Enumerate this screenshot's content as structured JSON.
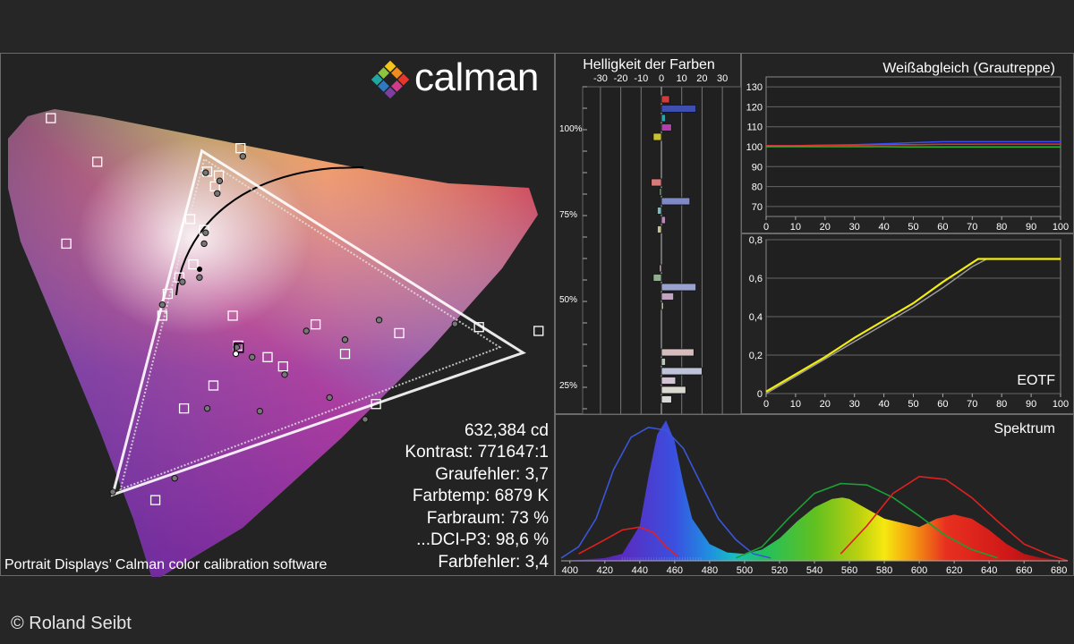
{
  "brand": {
    "name": "calman"
  },
  "stats": {
    "luminance": "632,384 cd",
    "contrast": "Kontrast: 771647:1",
    "gray_error": "Graufehler: 3,7",
    "color_temp": "Farbtemp: 6879 K",
    "gamut": "Farbraum: 73 %",
    "dci_p3": "...DCI-P3: 98,6 %",
    "color_error": "Farbfehler: 3,4"
  },
  "footnote": "Portrait Displays’ Calman color calibration software",
  "copyright": "© Roland Seibt",
  "chart_data": [
    {
      "type": "scatter",
      "title": "",
      "description_values": {
        "target_gamut_triangle": [
          [
            0.68,
            0.32
          ],
          [
            0.265,
            0.69
          ],
          [
            0.15,
            0.06
          ]
        ],
        "measured_gamut_triangle": [
          [
            0.65,
            0.33
          ],
          [
            0.268,
            0.675
          ],
          [
            0.16,
            0.07
          ]
        ],
        "white_point_target": [
          0.3127,
          0.329
        ],
        "white_point_measured": [
          0.309,
          0.318
        ],
        "target_squares": [
          [
            0.272,
            0.652
          ],
          [
            0.315,
            0.695
          ],
          [
            0.287,
            0.645
          ],
          [
            0.282,
            0.625
          ],
          [
            0.25,
            0.565
          ],
          [
            0.268,
            0.545
          ],
          [
            0.254,
            0.482
          ],
          [
            0.236,
            0.458
          ],
          [
            0.221,
            0.428
          ],
          [
            0.214,
            0.388
          ],
          [
            0.28,
            0.26
          ],
          [
            0.305,
            0.388
          ],
          [
            0.312,
            0.333
          ],
          [
            0.35,
            0.312
          ],
          [
            0.37,
            0.295
          ],
          [
            0.412,
            0.372
          ],
          [
            0.45,
            0.318
          ],
          [
            0.52,
            0.356
          ],
          [
            0.623,
            0.367
          ],
          [
            0.7,
            0.36
          ],
          [
            0.49,
            0.226
          ],
          [
            0.242,
            0.218
          ],
          [
            0.205,
            0.05
          ],
          [
            0.09,
            0.52
          ],
          [
            0.13,
            0.67
          ],
          [
            0.07,
            0.75
          ]
        ],
        "measured_points": [
          [
            0.27,
            0.65
          ],
          [
            0.318,
            0.68
          ],
          [
            0.288,
            0.635
          ],
          [
            0.285,
            0.612
          ],
          [
            0.27,
            0.54
          ],
          [
            0.268,
            0.52
          ],
          [
            0.262,
            0.458
          ],
          [
            0.24,
            0.45
          ],
          [
            0.214,
            0.408
          ],
          [
            0.31,
            0.33
          ],
          [
            0.33,
            0.312
          ],
          [
            0.4,
            0.36
          ],
          [
            0.45,
            0.344
          ],
          [
            0.494,
            0.38
          ],
          [
            0.592,
            0.373
          ],
          [
            0.372,
            0.28
          ],
          [
            0.43,
            0.238
          ],
          [
            0.476,
            0.198
          ],
          [
            0.34,
            0.213
          ],
          [
            0.272,
            0.218
          ],
          [
            0.23,
            0.09
          ],
          [
            0.15,
            0.065
          ]
        ]
      }
    },
    {
      "type": "bar",
      "title": "Helligkeit der Farben",
      "x_ticks": [
        "-30",
        "-20",
        "-10",
        "0",
        "10",
        "20",
        "30"
      ],
      "y_ticks": [
        "100%",
        "75%",
        "50%",
        "25%"
      ],
      "xlim": [
        -30,
        30
      ],
      "bars": [
        {
          "level": 100,
          "value": 4,
          "color": "#d33a3a"
        },
        {
          "level": 100,
          "value": 17,
          "color": "#3f4fb0"
        },
        {
          "level": 100,
          "value": 2,
          "color": "#29a7b0"
        },
        {
          "level": 100,
          "value": 5,
          "color": "#b23fb0"
        },
        {
          "level": 100,
          "value": -4,
          "color": "#c8c230"
        },
        {
          "level": 75,
          "value": -5,
          "color": "#d87a7a"
        },
        {
          "level": 75,
          "value": -1,
          "color": "#6fa26f"
        },
        {
          "level": 75,
          "value": 14,
          "color": "#7f89c5"
        },
        {
          "level": 75,
          "value": -2,
          "color": "#7fb8bf"
        },
        {
          "level": 75,
          "value": 2,
          "color": "#b88ab8"
        },
        {
          "level": 75,
          "value": -2,
          "color": "#c3c28d"
        },
        {
          "level": 50,
          "value": -1,
          "color": "#cfa9a9"
        },
        {
          "level": 50,
          "value": -4,
          "color": "#8fb08f"
        },
        {
          "level": 50,
          "value": 17,
          "color": "#9aa2cf"
        },
        {
          "level": 50,
          "value": 6,
          "color": "#c1a4c1"
        },
        {
          "level": 50,
          "value": 1,
          "color": "#c8c8b0"
        },
        {
          "level": 25,
          "value": 16,
          "color": "#d6bdbd"
        },
        {
          "level": 25,
          "value": 2,
          "color": "#b9c9b9"
        },
        {
          "level": 25,
          "value": 20,
          "color": "#bfc3d9"
        },
        {
          "level": 25,
          "value": 7,
          "color": "#d3c4d3"
        },
        {
          "level": 25,
          "value": 12,
          "color": "#dbd9cf"
        },
        {
          "level": 25,
          "value": 5,
          "color": "#d9d9d9"
        }
      ]
    },
    {
      "type": "line",
      "title": "Weißabgleich (Grautreppe)",
      "x_ticks": [
        "0",
        "10",
        "20",
        "30",
        "40",
        "50",
        "60",
        "70",
        "80",
        "90",
        "100"
      ],
      "y_ticks": [
        "70",
        "80",
        "90",
        "100",
        "110",
        "120",
        "130"
      ],
      "xlim": [
        0,
        100
      ],
      "ylim": [
        65,
        135
      ],
      "x": [
        0,
        10,
        20,
        30,
        40,
        50,
        60,
        70,
        80,
        90,
        100
      ],
      "series": [
        {
          "color": "#3050ff",
          "values": [
            100.5,
            100.5,
            100.8,
            101,
            101.5,
            102,
            102.5,
            102.5,
            102.5,
            102.5,
            102.5
          ]
        },
        {
          "color": "#e03030",
          "values": [
            100.5,
            100.5,
            100.7,
            100.8,
            101,
            101,
            101.2,
            101.2,
            101.3,
            101.3,
            101.3
          ]
        },
        {
          "color": "#30b030",
          "values": [
            100,
            100,
            100,
            100,
            100,
            99.8,
            99.8,
            99.8,
            99.8,
            99.8,
            99.8
          ]
        }
      ]
    },
    {
      "type": "line",
      "title": "EOTF",
      "x_ticks": [
        "0",
        "10",
        "20",
        "30",
        "40",
        "50",
        "60",
        "70",
        "80",
        "90",
        "100"
      ],
      "y_ticks": [
        "0",
        "0,2",
        "0,4",
        "0,6",
        "0,8"
      ],
      "xlim": [
        0,
        100
      ],
      "ylim": [
        0,
        0.8
      ],
      "series": [
        {
          "color": "#9a9a9a",
          "x": [
            0,
            10,
            20,
            30,
            40,
            50,
            60,
            70,
            75,
            100
          ],
          "values": [
            0.0,
            0.09,
            0.18,
            0.27,
            0.36,
            0.45,
            0.55,
            0.66,
            0.7,
            0.7
          ]
        },
        {
          "color": "#f2ec10",
          "x": [
            0,
            10,
            20,
            30,
            40,
            50,
            60,
            70,
            72,
            100
          ],
          "values": [
            0.01,
            0.1,
            0.19,
            0.29,
            0.38,
            0.47,
            0.58,
            0.68,
            0.7,
            0.7
          ]
        }
      ]
    },
    {
      "type": "area",
      "title": "Spektrum",
      "x_ticks": [
        "400",
        "420",
        "440",
        "460",
        "480",
        "500",
        "520",
        "540",
        "560",
        "580",
        "600",
        "620",
        "640",
        "660",
        "680"
      ],
      "xlim": [
        395,
        685
      ],
      "x": [
        395,
        410,
        420,
        430,
        440,
        445,
        450,
        455,
        460,
        465,
        470,
        480,
        490,
        500,
        510,
        520,
        530,
        540,
        550,
        556,
        560,
        570,
        580,
        590,
        600,
        610,
        620,
        630,
        640,
        650,
        660,
        670,
        685
      ],
      "spectrum": [
        0,
        0.01,
        0.02,
        0.05,
        0.25,
        0.6,
        0.9,
        1.0,
        0.85,
        0.55,
        0.3,
        0.12,
        0.06,
        0.05,
        0.08,
        0.16,
        0.28,
        0.38,
        0.44,
        0.45,
        0.44,
        0.37,
        0.3,
        0.27,
        0.24,
        0.3,
        0.33,
        0.3,
        0.22,
        0.12,
        0.05,
        0.02,
        0.0
      ],
      "curves": [
        {
          "color": "#3a56d8",
          "points": [
            [
              395,
              0.02
            ],
            [
              405,
              0.1
            ],
            [
              415,
              0.3
            ],
            [
              425,
              0.65
            ],
            [
              435,
              0.88
            ],
            [
              445,
              0.95
            ],
            [
              455,
              0.93
            ],
            [
              465,
              0.8
            ],
            [
              475,
              0.55
            ],
            [
              485,
              0.3
            ],
            [
              495,
              0.15
            ],
            [
              505,
              0.05
            ],
            [
              515,
              0.02
            ]
          ]
        },
        {
          "color": "#1aa035",
          "points": [
            [
              495,
              0.02
            ],
            [
              510,
              0.1
            ],
            [
              525,
              0.3
            ],
            [
              540,
              0.48
            ],
            [
              555,
              0.55
            ],
            [
              570,
              0.54
            ],
            [
              585,
              0.45
            ],
            [
              600,
              0.32
            ],
            [
              615,
              0.18
            ],
            [
              630,
              0.08
            ],
            [
              645,
              0.02
            ]
          ]
        },
        {
          "color": "#e02020",
          "points": [
            [
              405,
              0.05
            ],
            [
              420,
              0.15
            ],
            [
              430,
              0.22
            ],
            [
              440,
              0.24
            ],
            [
              448,
              0.2
            ],
            [
              455,
              0.1
            ],
            [
              462,
              0.03
            ]
          ],
          "points2": [
            [
              555,
              0.05
            ],
            [
              570,
              0.25
            ],
            [
              585,
              0.48
            ],
            [
              600,
              0.6
            ],
            [
              615,
              0.58
            ],
            [
              630,
              0.45
            ],
            [
              645,
              0.28
            ],
            [
              660,
              0.12
            ],
            [
              675,
              0.04
            ],
            [
              685,
              0.0
            ]
          ]
        }
      ]
    }
  ]
}
